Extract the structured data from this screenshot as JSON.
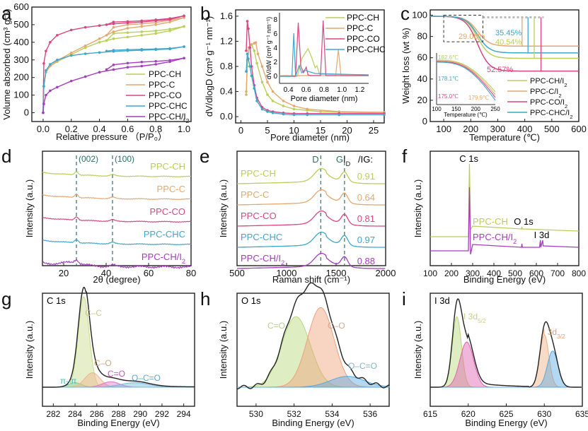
{
  "colors": {
    "CH": "#b9cf5a",
    "C": "#e3a870",
    "CO": "#d9467f",
    "CHC": "#3fa6cc",
    "CHI2": "#a63cbf",
    "dash": "#2f6f65",
    "axis": "#222222"
  },
  "chart_data": [
    {
      "panel": "a",
      "type": "line",
      "xlabel": "Relative pressure （P/P₀）",
      "ylabel": "Volume absorbed (cm³ g⁻¹)",
      "xlim": [
        -0.08,
        1.05
      ],
      "ylim": [
        -50,
        600
      ],
      "xticks": [
        0.0,
        0.2,
        0.4,
        0.6,
        0.8,
        1.0
      ],
      "yticks": [
        0,
        100,
        200,
        300,
        400,
        500,
        600
      ],
      "legend": "bottom-right",
      "series": [
        {
          "name": "PPC-CH",
          "key": "CH",
          "x": [
            0,
            0.005,
            0.02,
            0.05,
            0.1,
            0.2,
            0.3,
            0.4,
            0.5,
            0.6,
            0.7,
            0.8,
            0.9,
            1.0
          ],
          "y": [
            0,
            150,
            230,
            265,
            290,
            330,
            370,
            400,
            420,
            430,
            440,
            450,
            465,
            490
          ],
          "desorb_x": [
            1.0,
            0.9,
            0.8,
            0.7,
            0.6,
            0.5,
            0.45
          ],
          "desorb_y": [
            490,
            475,
            465,
            460,
            455,
            450,
            410
          ]
        },
        {
          "name": "PPC-C",
          "key": "C",
          "x": [
            0,
            0.005,
            0.02,
            0.05,
            0.1,
            0.2,
            0.3,
            0.4,
            0.5,
            0.6,
            0.7,
            0.8,
            0.9,
            1.0
          ],
          "y": [
            0,
            150,
            230,
            265,
            295,
            340,
            380,
            420,
            460,
            480,
            490,
            500,
            515,
            540
          ],
          "desorb_x": [
            1.0,
            0.9,
            0.8,
            0.7,
            0.6,
            0.5,
            0.45
          ],
          "desorb_y": [
            540,
            525,
            512,
            505,
            500,
            485,
            440
          ]
        },
        {
          "name": "PPC-CO",
          "key": "CO",
          "x": [
            0,
            0.005,
            0.02,
            0.05,
            0.1,
            0.2,
            0.3,
            0.4,
            0.5,
            0.6,
            0.7,
            0.8,
            0.9,
            1.0
          ],
          "y": [
            0,
            280,
            350,
            400,
            440,
            470,
            485,
            495,
            505,
            510,
            515,
            522,
            530,
            550
          ],
          "desorb_x": [
            1.0,
            0.9,
            0.8,
            0.7,
            0.6,
            0.5,
            0.45
          ],
          "desorb_y": [
            550,
            535,
            528,
            522,
            518,
            515,
            500
          ]
        },
        {
          "name": "PPC-CHC",
          "key": "CHC",
          "x": [
            0,
            0.005,
            0.02,
            0.05,
            0.1,
            0.2,
            0.3,
            0.4,
            0.5,
            0.6,
            0.7,
            0.8,
            0.9,
            1.0
          ],
          "y": [
            0,
            150,
            240,
            275,
            300,
            325,
            335,
            342,
            348,
            352,
            355,
            358,
            362,
            375
          ],
          "desorb_x": [
            1.0,
            0.9,
            0.8,
            0.7,
            0.6,
            0.5,
            0.45
          ],
          "desorb_y": [
            375,
            365,
            362,
            360,
            358,
            355,
            350
          ]
        },
        {
          "name": "PPC-CH/I₂",
          "key": "CHI2",
          "x": [
            0,
            0.005,
            0.02,
            0.05,
            0.1,
            0.2,
            0.3,
            0.4,
            0.5,
            0.6,
            0.7,
            0.8,
            0.9,
            1.0
          ],
          "y": [
            0,
            50,
            100,
            125,
            145,
            180,
            205,
            230,
            245,
            258,
            265,
            275,
            290,
            310
          ],
          "desorb_x": [
            1.0,
            0.9,
            0.8,
            0.7,
            0.6,
            0.5,
            0.45
          ],
          "desorb_y": [
            310,
            298,
            292,
            288,
            282,
            272,
            245
          ]
        }
      ]
    },
    {
      "panel": "b",
      "type": "line",
      "xlabel": "Pore diameter (nm)",
      "ylabel": "dV/dlogD (cm³ g⁻¹ nm⁻¹)",
      "xlim": [
        -1,
        27
      ],
      "ylim": [
        -0.1,
        1.7
      ],
      "xticks": [
        0,
        5,
        10,
        15,
        20,
        25
      ],
      "yticks": [
        0.0,
        0.4,
        0.8,
        1.2,
        1.6
      ],
      "legend": "top-right",
      "series": [
        {
          "name": "PPC-CH",
          "key": "CH",
          "x": [
            1.0,
            1.2,
            1.5,
            2.0,
            2.5,
            3,
            4,
            5,
            6,
            8,
            10,
            12.5,
            15,
            18.5,
            27
          ],
          "y": [
            0.4,
            0.8,
            1.1,
            1.15,
            1.05,
            0.85,
            0.55,
            0.35,
            0.25,
            0.17,
            0.12,
            0.1,
            0.08,
            0.07,
            0.06
          ]
        },
        {
          "name": "PPC-C",
          "key": "C",
          "x": [
            1.0,
            1.2,
            1.5,
            2.0,
            2.5,
            2.8,
            3.2,
            4,
            5,
            6,
            8,
            10,
            12.5,
            18.5,
            27
          ],
          "y": [
            0.35,
            0.9,
            1.1,
            1.15,
            1.17,
            1.18,
            1.0,
            0.8,
            0.55,
            0.4,
            0.25,
            0.17,
            0.12,
            0.08,
            0.07
          ]
        },
        {
          "name": "PPC-CO",
          "key": "CO",
          "x": [
            1.0,
            1.2,
            1.4,
            1.7,
            2,
            2.5,
            3,
            4,
            5,
            6,
            8,
            10,
            12.5,
            18.5,
            27
          ],
          "y": [
            1.05,
            1.52,
            1.4,
            1.1,
            0.8,
            0.5,
            0.3,
            0.15,
            0.1,
            0.08,
            0.06,
            0.05,
            0.05,
            0.05,
            0.05
          ]
        },
        {
          "name": "PPC-CHC",
          "key": "CHC",
          "x": [
            1.0,
            1.2,
            1.4,
            1.7,
            2,
            2.5,
            3,
            4,
            5,
            6,
            8,
            10,
            12.5,
            18.5,
            27
          ],
          "y": [
            0.72,
            1.0,
            0.92,
            0.8,
            0.65,
            0.45,
            0.25,
            0.12,
            0.08,
            0.06,
            0.04,
            0.03,
            0.03,
            0.03,
            0.03
          ]
        }
      ],
      "inset": {
        "xlabel": "Pore diameter (nm)",
        "ylabel": "dV/dW (cm³ g⁻¹ nm⁻¹)",
        "xlim": [
          0.3,
          1.3
        ],
        "ylim": [
          -1,
          9
        ],
        "xticks": [
          0.4,
          0.6,
          0.8,
          1.0,
          1.2
        ],
        "yticks": [
          0,
          2,
          4,
          6,
          8
        ],
        "series": [
          {
            "key": "CH",
            "x": [
              0.3,
              0.5,
              0.55,
              0.6,
              0.62,
              0.66,
              0.7,
              0.72,
              0.75,
              1.3
            ],
            "y": [
              0,
              0,
              2.5,
              3.5,
              3.9,
              2.7,
              1.2,
              1.5,
              0.3,
              0.2
            ]
          },
          {
            "key": "C",
            "x": [
              0.3,
              0.93,
              0.96,
              0.99,
              1.3
            ],
            "y": [
              0.1,
              0.1,
              3.8,
              0.1,
              0.1
            ]
          },
          {
            "key": "CO",
            "x": [
              0.3,
              0.48,
              0.51,
              0.54,
              0.57,
              0.6,
              0.62,
              0.65,
              0.76,
              0.79,
              0.82,
              1.3
            ],
            "y": [
              0,
              0,
              7.6,
              1.4,
              0.5,
              1.3,
              0.2,
              0.1,
              0.1,
              7.9,
              0.1,
              0.1
            ]
          },
          {
            "key": "CHC",
            "x": [
              0.3,
              0.44,
              0.46,
              0.48,
              0.52,
              0.55,
              0.58,
              0.6,
              0.62,
              0.7,
              1.3
            ],
            "y": [
              0,
              0,
              6.1,
              0,
              1.5,
              0.5,
              0.9,
              0.8,
              0.7,
              0.4,
              0.2
            ]
          }
        ]
      }
    },
    {
      "panel": "c",
      "type": "line",
      "xlabel": "Temperature (℃)",
      "ylabel": "Weight loss (wt %)",
      "xlim": [
        50,
        600
      ],
      "ylim": [
        0,
        105
      ],
      "xticks": [
        100,
        200,
        300,
        400,
        500,
        600
      ],
      "yticks": [
        0,
        20,
        40,
        60,
        80,
        100
      ],
      "legend": "bottom-right",
      "series": [
        {
          "name": "PPC-CH/I₂",
          "key": "CH",
          "final": 59.46
        },
        {
          "name": "PPC-C/I₂",
          "key": "C",
          "final": 70.92
        },
        {
          "name": "PPC-CO/I₂",
          "key": "CO",
          "final": 47.43
        },
        {
          "name": "PPC-CHC/I₂",
          "key": "CHC",
          "final": 64.55
        }
      ],
      "annotations": [
        {
          "text": "29.08%",
          "key": "C",
          "x": 390
        },
        {
          "text": "35.45%",
          "key": "CHC",
          "x": 412
        },
        {
          "text": "40.54%",
          "key": "CH",
          "x": 435
        },
        {
          "text": "52.57%",
          "key": "CO",
          "x": 460
        }
      ],
      "inset": {
        "xlabel": "Temperature (℃)",
        "xlim": [
          100,
          250
        ],
        "xticks": [
          100,
          150,
          200,
          250
        ],
        "onsets": [
          {
            "text": "182.6℃",
            "key": "CH"
          },
          {
            "text": "178.1℃",
            "key": "CHC"
          },
          {
            "text": "175.0℃",
            "key": "CO"
          },
          {
            "text": "179.9℃",
            "key": "C"
          }
        ]
      }
    },
    {
      "panel": "d",
      "type": "line",
      "xlabel": "2θ (degree)",
      "ylabel": "Intensity (a.u.)",
      "xlim": [
        10,
        80
      ],
      "xticks": [
        20,
        40,
        60,
        80
      ],
      "peaks": [
        {
          "label": "(002)",
          "x": 26
        },
        {
          "label": "(100)",
          "x": 43
        }
      ],
      "series": [
        {
          "name": "PPC-CH",
          "key": "CH"
        },
        {
          "name": "PPC-C",
          "key": "C"
        },
        {
          "name": "PPC-CO",
          "key": "CO"
        },
        {
          "name": "PPC-CHC",
          "key": "CHC"
        },
        {
          "name": "PPC-CH/I₂",
          "key": "CHI2"
        }
      ]
    },
    {
      "panel": "e",
      "type": "line",
      "xlabel": "Raman shift (cm⁻¹)",
      "ylabel": "Intensity (a.u.)",
      "xlim": [
        500,
        2000
      ],
      "xticks": [
        500,
        1000,
        1500,
        2000
      ],
      "bands": [
        {
          "label": "D",
          "x": 1345
        },
        {
          "label": "G",
          "x": 1585
        }
      ],
      "ratio_header": "I_D/I_G:",
      "series": [
        {
          "name": "PPC-CH",
          "key": "CH",
          "ratio": "0.91"
        },
        {
          "name": "PPC-C",
          "key": "C",
          "ratio": "0.64"
        },
        {
          "name": "PPC-CO",
          "key": "CO",
          "ratio": "0.81"
        },
        {
          "name": "PPC-CHC",
          "key": "CHC",
          "ratio": "0.97"
        },
        {
          "name": "PPC-CH/I₂",
          "key": "CHI2",
          "ratio": "0.88"
        }
      ]
    },
    {
      "panel": "f",
      "type": "line",
      "xlabel": "Binding Energy (eV)",
      "ylabel": "Intensity (a.u.)",
      "xlim": [
        100,
        800
      ],
      "xticks": [
        100,
        200,
        300,
        400,
        500,
        600,
        700,
        800
      ],
      "peaks": [
        {
          "label": "C 1s",
          "x": 284.8
        },
        {
          "label": "O 1s",
          "x": 532
        },
        {
          "label": "I 3d",
          "x": 620
        }
      ],
      "series": [
        {
          "name": "PPC-CH",
          "key": "CH"
        },
        {
          "name": "PPC-CH/I₂",
          "key": "CHI2"
        }
      ]
    },
    {
      "panel": "g",
      "type": "area",
      "title": "C 1s",
      "xlabel": "Binding Energy (eV)",
      "ylabel": "Intensity (a.u.)",
      "xlim": [
        281,
        295
      ],
      "xticks": [
        282,
        284,
        286,
        288,
        290,
        292,
        294
      ],
      "components": [
        {
          "label": "π–π",
          "center": 284.0,
          "height": 0.05,
          "width": 0.6,
          "color": "#48c0b5"
        },
        {
          "label": "C–C",
          "center": 284.8,
          "height": 1.0,
          "width": 0.5,
          "color": "#c8dc8a"
        },
        {
          "label": "C–O",
          "center": 285.6,
          "height": 0.16,
          "width": 0.7,
          "color": "#f0b48c"
        },
        {
          "label": "C=O",
          "center": 287.3,
          "height": 0.06,
          "width": 0.8,
          "color": "#d878c8"
        },
        {
          "label": "O–C=O",
          "center": 289.5,
          "height": 0.05,
          "width": 1.3,
          "color": "#78b8d8"
        }
      ]
    },
    {
      "panel": "h",
      "type": "area",
      "title": "O 1s",
      "xlabel": "Binding Energy (eV)",
      "ylabel": "Intensity (a.u.)",
      "xlim": [
        529,
        537
      ],
      "xticks": [
        530,
        532,
        534,
        536
      ],
      "components": [
        {
          "label": "C=O",
          "center": 532.1,
          "height": 0.78,
          "width": 0.75,
          "color": "#b8d878"
        },
        {
          "label": "C–O",
          "center": 533.4,
          "height": 0.88,
          "width": 0.7,
          "color": "#f0a07a"
        },
        {
          "label": "O–C=O",
          "center": 534.8,
          "height": 0.12,
          "width": 0.9,
          "color": "#58a8e0"
        }
      ]
    },
    {
      "panel": "i",
      "type": "area",
      "title": "I 3d",
      "xlabel": "Binding Energy (eV)",
      "ylabel": "Intensity (a.u.)",
      "xlim": [
        615,
        635
      ],
      "xticks": [
        615,
        620,
        625,
        630,
        635
      ],
      "labels": [
        {
          "text": "I 3d",
          "sub": "5/2",
          "x": 620.5
        },
        {
          "text": "I 3d",
          "sub": "3/2",
          "x": 631.5
        }
      ],
      "components": [
        {
          "label": "I 3d5/2 a",
          "center": 618.5,
          "height": 0.78,
          "width": 0.6,
          "color": "#b8d878"
        },
        {
          "label": "I 3d5/2 b",
          "center": 619.8,
          "height": 0.5,
          "width": 0.9,
          "color": "#e060b0"
        },
        {
          "label": "I 3d3/2 a",
          "center": 630.0,
          "height": 0.58,
          "width": 0.6,
          "color": "#f0b080"
        },
        {
          "label": "I 3d3/2 b",
          "center": 631.1,
          "height": 0.4,
          "width": 0.7,
          "color": "#58a8e0"
        }
      ]
    }
  ]
}
